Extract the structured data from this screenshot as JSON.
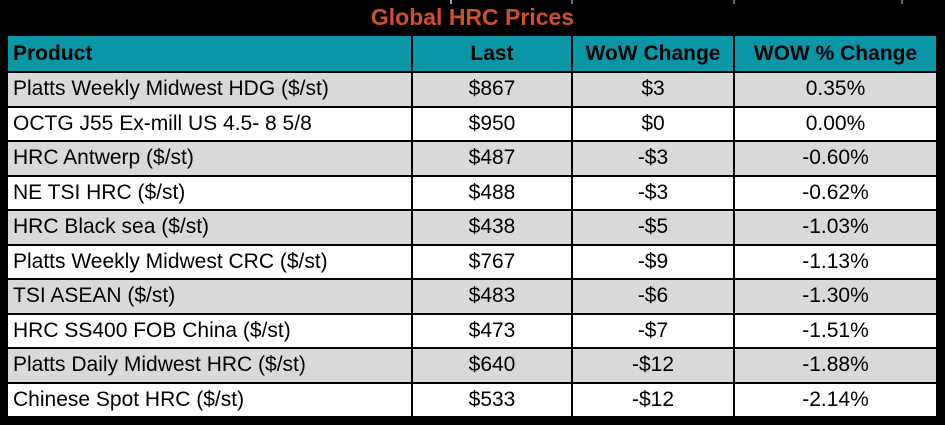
{
  "title": "Global HRC Prices",
  "colors": {
    "title_text": "#D1502B",
    "title_bg": "#000000",
    "header_bg": "#0997A7",
    "header_text": "#000000",
    "row_bg": "#FFFFFF",
    "row_alt_bg": "#D9D9D9",
    "grid_border": "#000000"
  },
  "chart_data": {
    "type": "table",
    "title": "Global HRC Prices",
    "columns": [
      {
        "key": "product",
        "label": "Product",
        "align": "left"
      },
      {
        "key": "last",
        "label": "Last",
        "align": "center"
      },
      {
        "key": "wow_change",
        "label": "WoW Change",
        "align": "center"
      },
      {
        "key": "wow_pct_change",
        "label": "WOW % Change",
        "align": "center"
      }
    ],
    "rows": [
      {
        "product": "Platts Weekly Midwest HDG ($/st)",
        "last": "$867",
        "wow_change": "$3",
        "wow_pct_change": "0.35%"
      },
      {
        "product": "OCTG J55 Ex-mill US 4.5- 8 5/8",
        "last": "$950",
        "wow_change": "$0",
        "wow_pct_change": "0.00%"
      },
      {
        "product": "HRC Antwerp ($/st)",
        "last": "$487",
        "wow_change": "-$3",
        "wow_pct_change": "-0.60%"
      },
      {
        "product": "NE TSI HRC ($/st)",
        "last": "$488",
        "wow_change": "-$3",
        "wow_pct_change": "-0.62%"
      },
      {
        "product": "HRC Black sea ($/st)",
        "last": "$438",
        "wow_change": "-$5",
        "wow_pct_change": "-1.03%"
      },
      {
        "product": "Platts Weekly Midwest CRC ($/st)",
        "last": "$767",
        "wow_change": "-$9",
        "wow_pct_change": "-1.13%"
      },
      {
        "product": "TSI ASEAN ($/st)",
        "last": "$483",
        "wow_change": "-$6",
        "wow_pct_change": "-1.30%"
      },
      {
        "product": "HRC SS400 FOB China ($/st)",
        "last": "$473",
        "wow_change": "-$7",
        "wow_pct_change": "-1.51%"
      },
      {
        "product": "Platts Daily Midwest HRC ($/st)",
        "last": "$640",
        "wow_change": "-$12",
        "wow_pct_change": "-1.88%"
      },
      {
        "product": "Chinese Spot HRC ($/st)",
        "last": "$533",
        "wow_change": "-$12",
        "wow_pct_change": "-2.14%"
      }
    ]
  }
}
